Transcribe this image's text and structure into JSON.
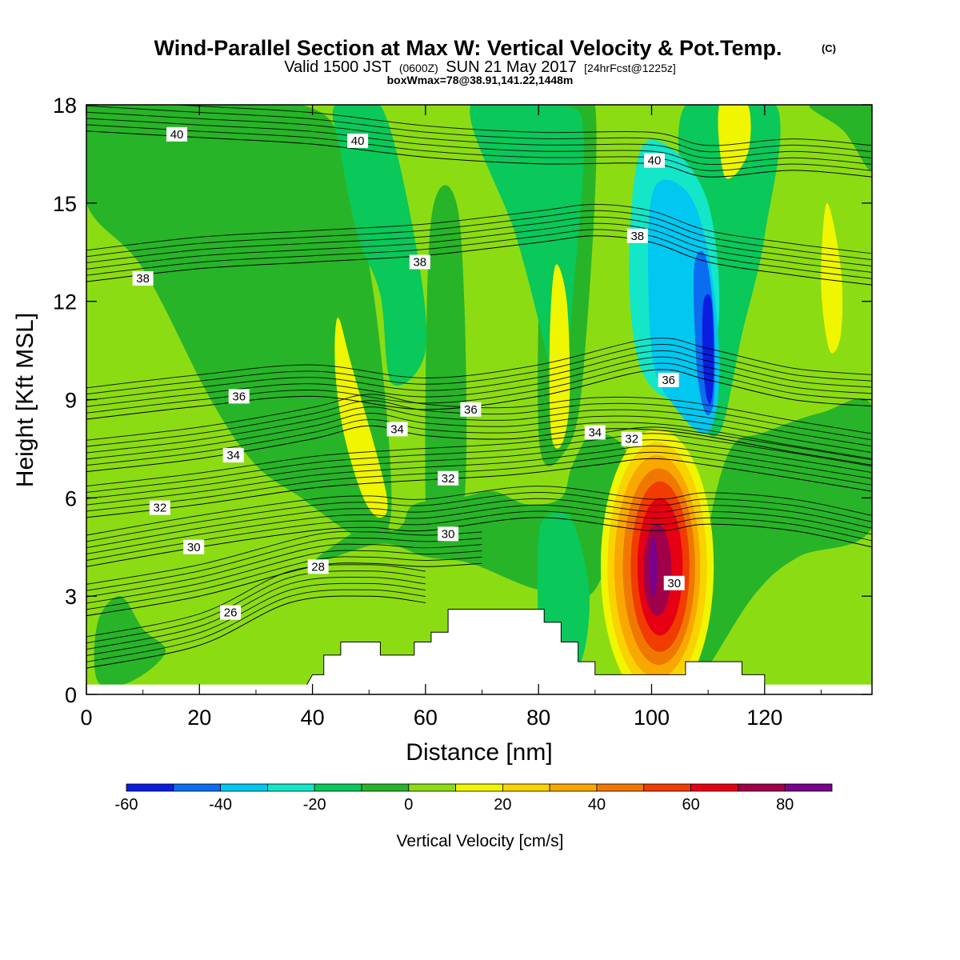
{
  "header": {
    "title": "Wind-Parallel Section at Max W: Vertical Velocity & Pot.Temp.",
    "title_mark": "(C)",
    "sub_valid": "Valid 1500 JST",
    "sub_z": "(0600Z)",
    "sub_date": "SUN 21 May 2017",
    "sub_fcst": "[24hrFcst@1225z]",
    "box_info": "boxWmax=78@38.91,141.22,1448m"
  },
  "chart_data": {
    "type": "heatmap",
    "xlabel": "Distance [nm]",
    "ylabel": "Height [Kft MSL]",
    "xlim": [
      0,
      139
    ],
    "ylim": [
      0,
      18
    ],
    "x_ticks": [
      0,
      20,
      40,
      60,
      80,
      100,
      120
    ],
    "y_ticks": [
      0,
      3,
      6,
      9,
      12,
      15,
      18
    ],
    "colorbar": {
      "label": "Vertical Velocity [cm/s]",
      "levels": [
        -60,
        -50,
        -40,
        -30,
        -20,
        -10,
        0,
        10,
        20,
        30,
        40,
        50,
        60,
        70,
        80,
        90
      ],
      "tick_labels": [
        "-60",
        "-40",
        "-20",
        "0",
        "20",
        "40",
        "60",
        "80"
      ],
      "colors": [
        "#0a1ee0",
        "#0b6cf0",
        "#00c8f0",
        "#14e6c8",
        "#0ac85a",
        "#28b428",
        "#8cdc14",
        "#f0f500",
        "#fad200",
        "#f8a800",
        "#f07800",
        "#f03c00",
        "#e60014",
        "#a0004a",
        "#78008c"
      ]
    },
    "background_color": "#8cdc14",
    "wmax_cm_s": 78,
    "regions": [
      {
        "kind": "poly",
        "color": "#28b428",
        "pts": [
          [
            0,
            15
          ],
          [
            10,
            13
          ],
          [
            22,
            9
          ],
          [
            30,
            7
          ],
          [
            38,
            6
          ],
          [
            46,
            5
          ],
          [
            51,
            4.6
          ],
          [
            54,
            6
          ],
          [
            51,
            12
          ],
          [
            46,
            16
          ],
          [
            38,
            18
          ],
          [
            0,
            18
          ]
        ]
      },
      {
        "kind": "poly",
        "color": "#28b428",
        "pts": [
          [
            2,
            2.2
          ],
          [
            6,
            3
          ],
          [
            10,
            2
          ],
          [
            14,
            1.3
          ],
          [
            8,
            0.4
          ],
          [
            2,
            0.4
          ]
        ]
      },
      {
        "kind": "poly",
        "color": "#28b428",
        "pts": [
          [
            40,
            4
          ],
          [
            52,
            4.6
          ],
          [
            60,
            4.2
          ],
          [
            68,
            4
          ],
          [
            80,
            3.2
          ],
          [
            90,
            3.2
          ],
          [
            96,
            7
          ],
          [
            90,
            8
          ],
          [
            86,
            7
          ],
          [
            84,
            6
          ],
          [
            78,
            5.8
          ],
          [
            72,
            6.2
          ],
          [
            66,
            6
          ],
          [
            58,
            5.8
          ],
          [
            56,
            5.2
          ],
          [
            54,
            5
          ],
          [
            50,
            5.2
          ]
        ]
      },
      {
        "kind": "poly",
        "color": "#28b428",
        "pts": [
          [
            108,
            0.4
          ],
          [
            118,
            3
          ],
          [
            126,
            4.2
          ],
          [
            139,
            5.1
          ],
          [
            139,
            8.8
          ],
          [
            130,
            8.6
          ],
          [
            120,
            8
          ],
          [
            114,
            7.5
          ],
          [
            110,
            5
          ],
          [
            108,
            2
          ]
        ]
      },
      {
        "kind": "poly",
        "color": "#28b428",
        "pts": [
          [
            61,
            14.5
          ],
          [
            66,
            14.5
          ],
          [
            67,
            6.2
          ],
          [
            62,
            5.6
          ],
          [
            60,
            6
          ]
        ]
      },
      {
        "kind": "poly",
        "color": "#28b428",
        "pts": [
          [
            82,
            18
          ],
          [
            90,
            18
          ],
          [
            88,
            10
          ],
          [
            85,
            7.5
          ],
          [
            80,
            8
          ]
        ]
      },
      {
        "kind": "poly",
        "color": "#28b428",
        "pts": [
          [
            128,
            18
          ],
          [
            139,
            18
          ],
          [
            139,
            16
          ],
          [
            134,
            17.2
          ]
        ]
      },
      {
        "kind": "poly",
        "color": "#0ac85a",
        "pts": [
          [
            44,
            18
          ],
          [
            52,
            18
          ],
          [
            58,
            14
          ],
          [
            60,
            10.5
          ],
          [
            54,
            9.5
          ],
          [
            52,
            12.2
          ],
          [
            48,
            14
          ],
          [
            45,
            16.5
          ]
        ]
      },
      {
        "kind": "poly",
        "color": "#0ac85a",
        "pts": [
          [
            68,
            18
          ],
          [
            84,
            18
          ],
          [
            88,
            17
          ],
          [
            86,
            12
          ],
          [
            84,
            8.5
          ],
          [
            82,
            10
          ],
          [
            76,
            14
          ]
        ]
      },
      {
        "kind": "poly",
        "color": "#0ac85a",
        "pts": [
          [
            106,
            18
          ],
          [
            122,
            18
          ],
          [
            120,
            14
          ],
          [
            116,
            11
          ],
          [
            112,
            8
          ],
          [
            108,
            9
          ],
          [
            106,
            14
          ]
        ]
      },
      {
        "kind": "poly",
        "color": "#0ac85a",
        "pts": [
          [
            81,
            0.8
          ],
          [
            87,
            0.8
          ],
          [
            89,
            3
          ],
          [
            86,
            5.3
          ],
          [
            82,
            5.5
          ],
          [
            80,
            4.8
          ],
          [
            80,
            2
          ]
        ]
      },
      {
        "kind": "poly",
        "color": "#14e6c8",
        "pts": [
          [
            98,
            16.6
          ],
          [
            104,
            16.6
          ],
          [
            110,
            15
          ],
          [
            112,
            12
          ],
          [
            110,
            10
          ],
          [
            104,
            9
          ],
          [
            98,
            10
          ],
          [
            96,
            13
          ]
        ]
      },
      {
        "kind": "poly",
        "color": "#00c8f0",
        "pts": [
          [
            100,
            15.2
          ],
          [
            106,
            15.4
          ],
          [
            110,
            13.5
          ],
          [
            112,
            10
          ],
          [
            110,
            8
          ],
          [
            104,
            8.8
          ],
          [
            100,
            10.5
          ]
        ]
      },
      {
        "kind": "poly",
        "color": "#0b6cf0",
        "pts": [
          [
            107.5,
            13
          ],
          [
            109.5,
            13.4
          ],
          [
            111,
            11.5
          ],
          [
            111,
            9
          ],
          [
            109.5,
            8.6
          ],
          [
            108,
            10
          ]
        ]
      },
      {
        "kind": "poly",
        "color": "#0a1ee0",
        "pts": [
          [
            109.2,
            12
          ],
          [
            110.6,
            12
          ],
          [
            111,
            10
          ],
          [
            110.5,
            8.9
          ],
          [
            109.6,
            9.2
          ],
          [
            109,
            10.5
          ]
        ]
      },
      {
        "kind": "poly",
        "color": "#f0f500",
        "pts": [
          [
            44.5,
            11.5
          ],
          [
            47,
            10
          ],
          [
            53,
            6.2
          ],
          [
            52,
            5.4
          ],
          [
            49,
            6
          ],
          [
            45.5,
            8
          ],
          [
            44,
            10
          ]
        ]
      },
      {
        "kind": "poly",
        "color": "#f0f500",
        "pts": [
          [
            83,
            13.1
          ],
          [
            85,
            12
          ],
          [
            85.5,
            9
          ],
          [
            84,
            7.6
          ],
          [
            82.2,
            8
          ],
          [
            82,
            11
          ]
        ]
      },
      {
        "kind": "poly",
        "color": "#f0f500",
        "pts": [
          [
            131,
            15
          ],
          [
            133.5,
            13
          ],
          [
            133.5,
            11
          ],
          [
            131.5,
            10.5
          ],
          [
            130,
            12.5
          ]
        ]
      },
      {
        "kind": "poly",
        "color": "#f0f500",
        "pts": [
          [
            112,
            18
          ],
          [
            117,
            18
          ],
          [
            117,
            16.5
          ],
          [
            113,
            15.8
          ]
        ]
      },
      {
        "kind": "ellipse",
        "color": "#f0f500",
        "cx": 101,
        "cy": 3.9,
        "rx": 10,
        "ry": 4.2
      },
      {
        "kind": "ellipse",
        "color": "#fad200",
        "cx": 101,
        "cy": 3.9,
        "rx": 8.8,
        "ry": 3.8
      },
      {
        "kind": "ellipse",
        "color": "#f8a800",
        "cx": 101,
        "cy": 3.9,
        "rx": 7.6,
        "ry": 3.4
      },
      {
        "kind": "ellipse",
        "color": "#f07800",
        "cx": 101.3,
        "cy": 3.9,
        "rx": 6.4,
        "ry": 3.0
      },
      {
        "kind": "ellipse",
        "color": "#f03c00",
        "cx": 101.5,
        "cy": 3.9,
        "rx": 5.2,
        "ry": 2.6
      },
      {
        "kind": "ellipse",
        "color": "#e60014",
        "cx": 101.5,
        "cy": 3.9,
        "rx": 4.0,
        "ry": 2.1
      },
      {
        "kind": "ellipse",
        "color": "#a0004a",
        "cx": 101,
        "cy": 3.8,
        "rx": 2.5,
        "ry": 1.4
      },
      {
        "kind": "ellipse",
        "color": "#78008c",
        "cx": 100.3,
        "cy": 3.9,
        "rx": 0.7,
        "ry": 0.9
      }
    ],
    "terrain_top": [
      [
        39,
        0.3
      ],
      [
        40,
        0.6
      ],
      [
        42,
        0.6
      ],
      [
        42,
        1.2
      ],
      [
        45,
        1.2
      ],
      [
        45,
        1.6
      ],
      [
        52,
        1.6
      ],
      [
        52,
        1.2
      ],
      [
        58,
        1.2
      ],
      [
        58,
        1.6
      ],
      [
        61,
        1.6
      ],
      [
        61,
        1.9
      ],
      [
        64,
        1.9
      ],
      [
        64,
        2.6
      ],
      [
        81,
        2.6
      ],
      [
        81,
        2.2
      ],
      [
        84,
        2.2
      ],
      [
        84,
        1.6
      ],
      [
        87,
        1.6
      ],
      [
        87,
        1.0
      ],
      [
        90,
        1.0
      ],
      [
        90,
        0.6
      ],
      [
        106,
        0.6
      ],
      [
        106,
        1.0
      ],
      [
        116,
        1.0
      ],
      [
        116,
        0.6
      ],
      [
        120,
        0.6
      ],
      [
        120,
        0.3
      ]
    ],
    "contours": [
      {
        "value": 26,
        "pts": [
          [
            0,
            0.8
          ],
          [
            20,
            1.5
          ],
          [
            36,
            2.8
          ],
          [
            50,
            3.0
          ],
          [
            60,
            2.8
          ]
        ]
      },
      {
        "value": 28,
        "pts": [
          [
            0,
            2.4
          ],
          [
            20,
            3.0
          ],
          [
            40,
            3.9
          ],
          [
            50,
            4.0
          ],
          [
            60,
            3.9
          ],
          [
            70,
            4.0
          ]
        ]
      },
      {
        "value": 30,
        "pts": [
          [
            0,
            3.9
          ],
          [
            20,
            4.5
          ],
          [
            40,
            5.0
          ],
          [
            50,
            5.1
          ],
          [
            60,
            5.0
          ],
          [
            80,
            5.4
          ],
          [
            100,
            5.0
          ],
          [
            110,
            5.2
          ],
          [
            125,
            5.0
          ],
          [
            139,
            4.5
          ]
        ]
      },
      {
        "value": 32,
        "pts": [
          [
            0,
            5.4
          ],
          [
            20,
            5.8
          ],
          [
            40,
            6.3
          ],
          [
            55,
            6.5
          ],
          [
            75,
            6.7
          ],
          [
            90,
            7.0
          ],
          [
            100,
            7.2
          ],
          [
            110,
            7.0
          ],
          [
            125,
            6.6
          ],
          [
            139,
            6.2
          ]
        ]
      },
      {
        "value": 34,
        "pts": [
          [
            0,
            6.8
          ],
          [
            20,
            7.2
          ],
          [
            40,
            7.8
          ],
          [
            50,
            8.2
          ],
          [
            60,
            7.9
          ],
          [
            75,
            7.8
          ],
          [
            90,
            8.1
          ],
          [
            105,
            8.0
          ],
          [
            125,
            7.4
          ],
          [
            139,
            7.0
          ]
        ]
      },
      {
        "value": 36,
        "pts": [
          [
            0,
            8.4
          ],
          [
            20,
            8.8
          ],
          [
            40,
            9.1
          ],
          [
            60,
            8.7
          ],
          [
            80,
            9.1
          ],
          [
            100,
            9.9
          ],
          [
            110,
            9.6
          ],
          [
            125,
            9.0
          ],
          [
            139,
            8.8
          ]
        ]
      },
      {
        "value": 38,
        "pts": [
          [
            0,
            12.6
          ],
          [
            20,
            13.0
          ],
          [
            40,
            13.2
          ],
          [
            60,
            13.4
          ],
          [
            80,
            13.8
          ],
          [
            90,
            14.0
          ],
          [
            100,
            13.8
          ],
          [
            110,
            13.2
          ],
          [
            125,
            12.8
          ],
          [
            139,
            12.5
          ]
        ]
      },
      {
        "value": 40,
        "pts": [
          [
            0,
            17.2
          ],
          [
            20,
            17.0
          ],
          [
            40,
            16.8
          ],
          [
            60,
            16.4
          ],
          [
            80,
            16.2
          ],
          [
            100,
            16.2
          ],
          [
            110,
            15.8
          ],
          [
            125,
            16.0
          ],
          [
            139,
            15.8
          ]
        ]
      }
    ],
    "contour_labels": [
      {
        "text": "40",
        "x": 16,
        "y": 17.1
      },
      {
        "text": "40",
        "x": 48,
        "y": 16.9
      },
      {
        "text": "40",
        "x": 100.5,
        "y": 16.3
      },
      {
        "text": "38",
        "x": 10,
        "y": 12.7
      },
      {
        "text": "38",
        "x": 59,
        "y": 13.2
      },
      {
        "text": "38",
        "x": 97.5,
        "y": 14.0
      },
      {
        "text": "36",
        "x": 27,
        "y": 9.1
      },
      {
        "text": "36",
        "x": 68,
        "y": 8.7
      },
      {
        "text": "36",
        "x": 103,
        "y": 9.6
      },
      {
        "text": "34",
        "x": 26,
        "y": 7.3
      },
      {
        "text": "34",
        "x": 55,
        "y": 8.1
      },
      {
        "text": "34",
        "x": 90,
        "y": 8.0
      },
      {
        "text": "32",
        "x": 13,
        "y": 5.7
      },
      {
        "text": "32",
        "x": 64,
        "y": 6.6
      },
      {
        "text": "32",
        "x": 96.5,
        "y": 7.8
      },
      {
        "text": "30",
        "x": 19,
        "y": 4.5
      },
      {
        "text": "30",
        "x": 64,
        "y": 4.9
      },
      {
        "text": "30",
        "x": 104,
        "y": 3.4
      },
      {
        "text": "28",
        "x": 41,
        "y": 3.9
      },
      {
        "text": "26",
        "x": 25.5,
        "y": 2.5
      }
    ]
  }
}
